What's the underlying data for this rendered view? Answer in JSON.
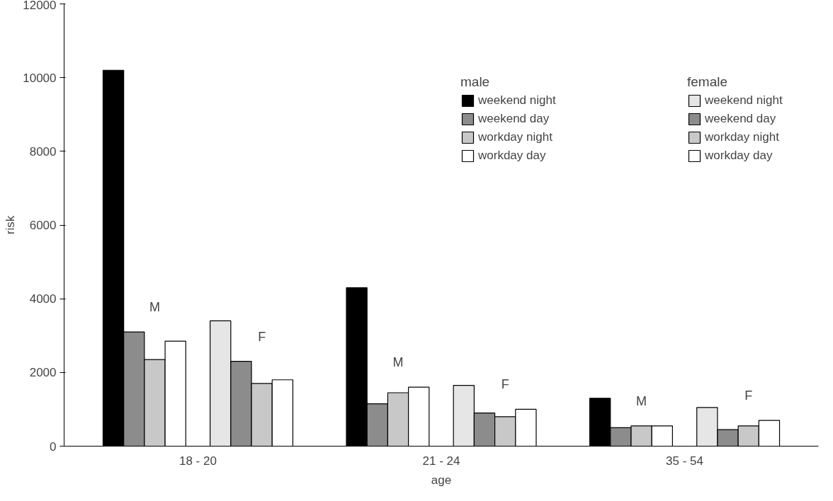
{
  "chart_data": {
    "type": "bar",
    "xlabel": "age",
    "ylabel": "risk",
    "categories": [
      "18 - 20",
      "21 - 24",
      "35 - 54"
    ],
    "legend_title": [
      "male",
      "female"
    ],
    "series": [
      {
        "name": "weekend night",
        "color": "#000000",
        "values": [
          10200,
          4300,
          1300
        ]
      },
      {
        "name": "weekend day",
        "color": "#8c8c8c",
        "values": [
          3100,
          1150,
          500
        ]
      },
      {
        "name": "workday night",
        "color": "#c8c8c8",
        "values": [
          2350,
          1450,
          550
        ]
      },
      {
        "name": "workday day",
        "color": "#ffffff",
        "values": [
          2850,
          1600,
          550
        ]
      },
      {
        "name": "weekend night",
        "color": "#e6e6e6",
        "values": [
          3400,
          1650,
          1050
        ]
      },
      {
        "name": "weekend day",
        "color": "#8c8c8c",
        "values": [
          2300,
          900,
          450
        ]
      },
      {
        "name": "workday night",
        "color": "#c8c8c8",
        "values": [
          1700,
          800,
          550
        ]
      },
      {
        "name": "workday day",
        "color": "#ffffff",
        "values": [
          1800,
          1000,
          700
        ]
      }
    ],
    "annotations": [
      "M",
      "F",
      "M",
      "F",
      "M",
      "F"
    ],
    "ylim": [
      0,
      12000
    ],
    "yticks": [
      0,
      2000,
      4000,
      6000,
      8000,
      10000,
      12000
    ],
    "legend": "top right",
    "grid": false
  }
}
